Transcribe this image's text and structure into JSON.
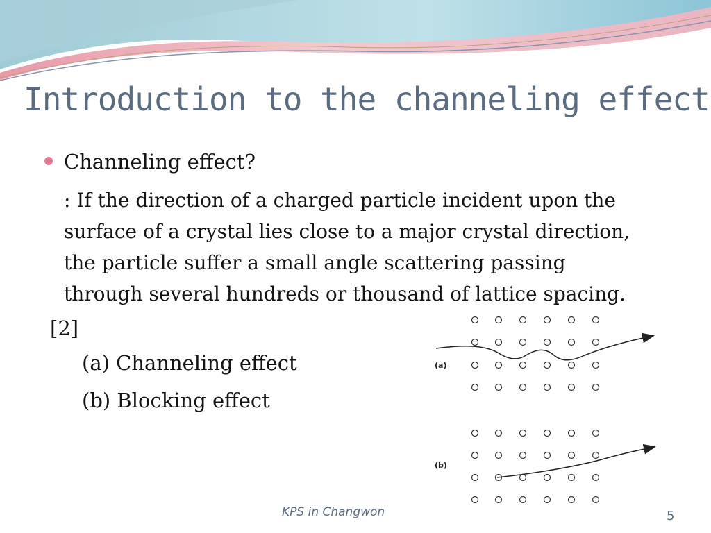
{
  "slide": {
    "title": "Introduction to the channeling effect",
    "bullet": "Channeling effect?",
    "paragraph": [
      ": If the direction of a charged particle incident upon the",
      "surface of a crystal lies close to a major crystal direction,",
      "the particle suffer a small angle scattering passing",
      "through several hundreds or thousand of lattice spacing."
    ],
    "reference": "[2]",
    "sub_items": [
      "(a) Channeling effect",
      "(b) Blocking effect"
    ],
    "figure": {
      "panel_a_label": "(a)",
      "panel_b_label": "(b)"
    },
    "footer": "KPS in Changwon",
    "page_number": "5"
  },
  "colors": {
    "title": "#5a6b82",
    "bullet": "#e7788f",
    "text": "#141414",
    "wave_pink": "#e8a6b3",
    "wave_blue": "#8fc8d8"
  }
}
